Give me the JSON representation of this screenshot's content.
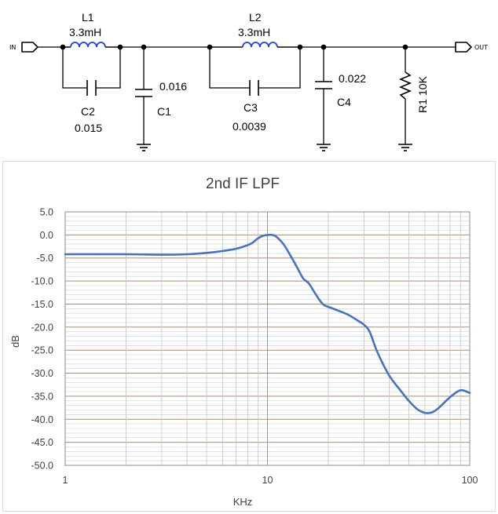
{
  "schematic": {
    "ports": {
      "in": "IN",
      "out": "OUT"
    },
    "components": {
      "L1": {
        "ref": "L1",
        "value": "3.3mH"
      },
      "L2": {
        "ref": "L2",
        "value": "3.3mH"
      },
      "C1": {
        "ref": "C1",
        "value": "0.016"
      },
      "C2": {
        "ref": "C2",
        "value": "0.015"
      },
      "C3": {
        "ref": "C3",
        "value": "0.0039"
      },
      "C4": {
        "ref": "C4",
        "value": "0.022"
      },
      "R1": {
        "ref": "R1",
        "value": "10K"
      }
    }
  },
  "chart_data": {
    "type": "line",
    "title": "2nd IF LPF",
    "xlabel": "KHz",
    "ylabel": "dB",
    "xscale": "log",
    "xlim": [
      1,
      100
    ],
    "ylim": [
      -50,
      5
    ],
    "xticks": [
      "1",
      "10",
      "100"
    ],
    "yticks": [
      "5.0",
      "0.0",
      "-5.0",
      "-10.0",
      "-15.0",
      "-20.0",
      "-25.0",
      "-30.0",
      "-35.0",
      "-40.0",
      "-45.0",
      "-50.0"
    ],
    "grid": true,
    "legend": "none",
    "line_color": "#4472C4",
    "x": [
      1,
      2,
      3,
      4,
      5,
      6,
      7,
      8,
      8.5,
      9,
      9.5,
      10,
      10.5,
      11,
      12,
      13,
      14,
      15,
      16,
      17,
      18,
      19,
      20,
      22,
      25,
      28,
      30,
      32,
      35,
      40,
      45,
      50,
      55,
      60,
      65,
      70,
      80,
      90,
      100
    ],
    "y": [
      -4.2,
      -4.2,
      -4.3,
      -4.2,
      -3.9,
      -3.5,
      -3.0,
      -2.2,
      -1.6,
      -0.7,
      -0.2,
      0.0,
      0.0,
      -0.3,
      -2.0,
      -4.5,
      -7.0,
      -9.4,
      -10.5,
      -12.3,
      -14.0,
      -15.2,
      -15.6,
      -16.3,
      -17.3,
      -18.6,
      -19.5,
      -21.0,
      -25.5,
      -30.5,
      -33.5,
      -36.0,
      -37.8,
      -38.6,
      -38.5,
      -37.6,
      -35.2,
      -33.7,
      -34.3
    ]
  }
}
